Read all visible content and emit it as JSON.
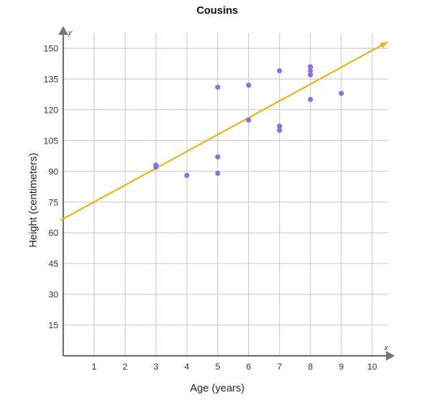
{
  "chart_data": {
    "type": "scatter",
    "title": "Cousins",
    "xlabel": "Age (years)",
    "ylabel": "Height (centimeters)",
    "x_axis_letter": "x",
    "y_axis_letter": "y",
    "xlim": [
      0,
      10.5
    ],
    "ylim": [
      0,
      157
    ],
    "x_ticks": [
      1,
      2,
      3,
      4,
      5,
      6,
      7,
      8,
      9,
      10
    ],
    "y_ticks": [
      15,
      30,
      45,
      60,
      75,
      90,
      105,
      120,
      135,
      150
    ],
    "grid": true,
    "points": [
      {
        "x": 3,
        "y": 93
      },
      {
        "x": 3,
        "y": 92
      },
      {
        "x": 4,
        "y": 88
      },
      {
        "x": 5,
        "y": 131
      },
      {
        "x": 5,
        "y": 97
      },
      {
        "x": 5,
        "y": 89
      },
      {
        "x": 6,
        "y": 132
      },
      {
        "x": 6,
        "y": 115
      },
      {
        "x": 7,
        "y": 139
      },
      {
        "x": 7,
        "y": 112
      },
      {
        "x": 7,
        "y": 110
      },
      {
        "x": 8,
        "y": 141
      },
      {
        "x": 8,
        "y": 139
      },
      {
        "x": 8,
        "y": 137
      },
      {
        "x": 8,
        "y": 125
      },
      {
        "x": 9,
        "y": 128
      }
    ],
    "trend_line": {
      "x_start": -0.1,
      "y_start": 66,
      "x_end": 10.5,
      "y_end": 153
    },
    "colors": {
      "points": "#8475dd",
      "trend_line": "#e8b51a",
      "axes": "#777777",
      "grid": "#cccccc"
    }
  }
}
